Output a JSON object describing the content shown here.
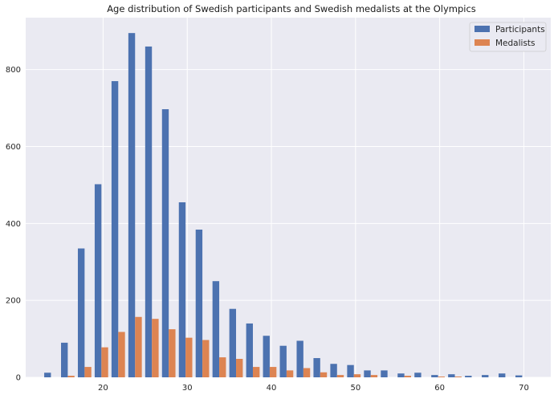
{
  "chart_data": {
    "type": "bar",
    "title": "Age distribution of Swedish participants and Swedish medalists at the Olympics",
    "xlabel": "",
    "ylabel": "",
    "xlim": [
      10.8,
      73.2
    ],
    "ylim": [
      0,
      935
    ],
    "x_ticks": [
      20,
      30,
      40,
      50,
      60,
      70
    ],
    "y_ticks": [
      0,
      200,
      400,
      600,
      800
    ],
    "grid": true,
    "legend_position": "top-right",
    "bin_centers": [
      13.8,
      15.8,
      17.8,
      19.8,
      21.8,
      23.8,
      25.8,
      27.8,
      29.8,
      31.8,
      33.8,
      35.8,
      37.8,
      39.8,
      41.8,
      43.8,
      45.8,
      47.8,
      49.8,
      51.8,
      53.8,
      55.8,
      57.8,
      59.8,
      61.8,
      63.8,
      65.8,
      67.8,
      69.8
    ],
    "series": [
      {
        "name": "Participants",
        "color": "#4C72B0",
        "values": [
          12,
          90,
          335,
          502,
          770,
          895,
          860,
          697,
          455,
          384,
          250,
          178,
          140,
          108,
          82,
          95,
          50,
          35,
          32,
          18,
          18,
          10,
          12,
          6,
          8,
          4,
          6,
          10,
          5
        ]
      },
      {
        "name": "Medalists",
        "color": "#DD8452",
        "values": [
          0,
          4,
          27,
          78,
          118,
          157,
          152,
          125,
          103,
          97,
          52,
          48,
          27,
          27,
          18,
          24,
          13,
          6,
          8,
          6,
          0,
          4,
          0,
          2,
          2,
          0,
          0,
          0,
          0
        ]
      }
    ]
  }
}
